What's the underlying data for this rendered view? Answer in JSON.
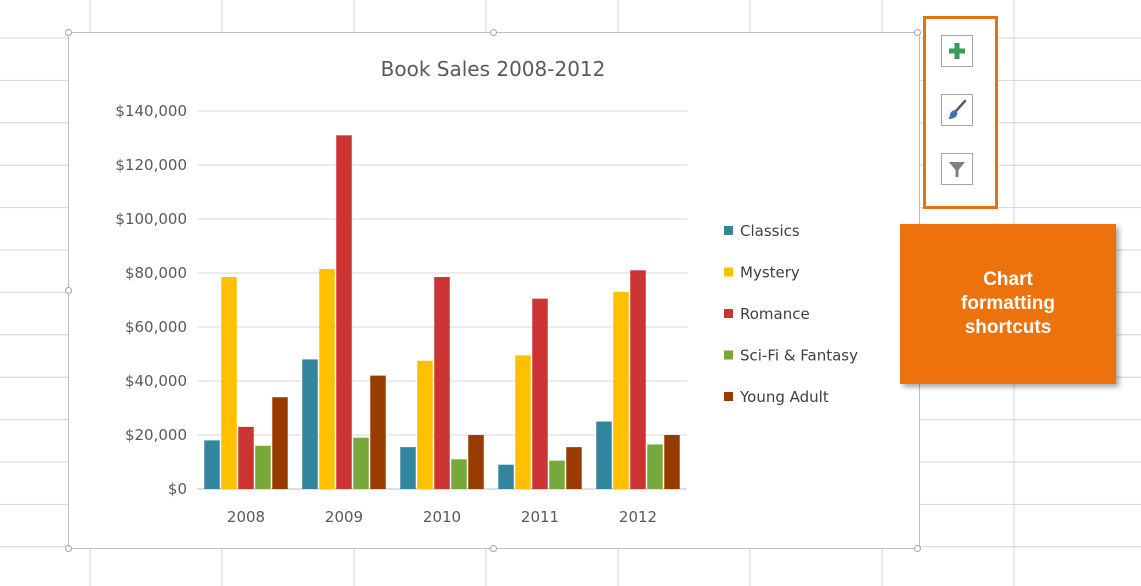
{
  "chart_data": {
    "type": "bar",
    "title": "Book Sales 2008-2012",
    "categories": [
      "2008",
      "2009",
      "2010",
      "2011",
      "2012"
    ],
    "series": [
      {
        "name": "Classics",
        "color": "#31859c",
        "values": [
          18000,
          48000,
          15500,
          9000,
          25000
        ]
      },
      {
        "name": "Mystery",
        "color": "#ffc000",
        "values": [
          78500,
          81500,
          47500,
          49500,
          73000
        ]
      },
      {
        "name": "Romance",
        "color": "#cc3333",
        "values": [
          23000,
          131000,
          78500,
          70500,
          81000
        ]
      },
      {
        "name": "Sci-Fi & Fantasy",
        "color": "#77a83c",
        "values": [
          16000,
          19000,
          11000,
          10500,
          16500
        ]
      },
      {
        "name": "Young Adult",
        "color": "#993c00",
        "values": [
          34000,
          42000,
          20000,
          15500,
          20000
        ]
      }
    ],
    "y_ticks": [
      "$0",
      "$20,000",
      "$40,000",
      "$60,000",
      "$80,000",
      "$100,000",
      "$120,000",
      "$140,000"
    ],
    "ylim": [
      0,
      140000
    ],
    "xlabel": "",
    "ylabel": "",
    "grid": true,
    "legend_position": "right"
  },
  "shortcuts": {
    "buttons": [
      {
        "name": "chart-elements",
        "icon": "plus-icon"
      },
      {
        "name": "chart-styles",
        "icon": "paintbrush-icon"
      },
      {
        "name": "chart-filters",
        "icon": "funnel-icon"
      }
    ],
    "accent_color": "#e6720a"
  },
  "callout": {
    "text": "Chart\nformatting\nshortcuts",
    "color": "#ee720b"
  }
}
